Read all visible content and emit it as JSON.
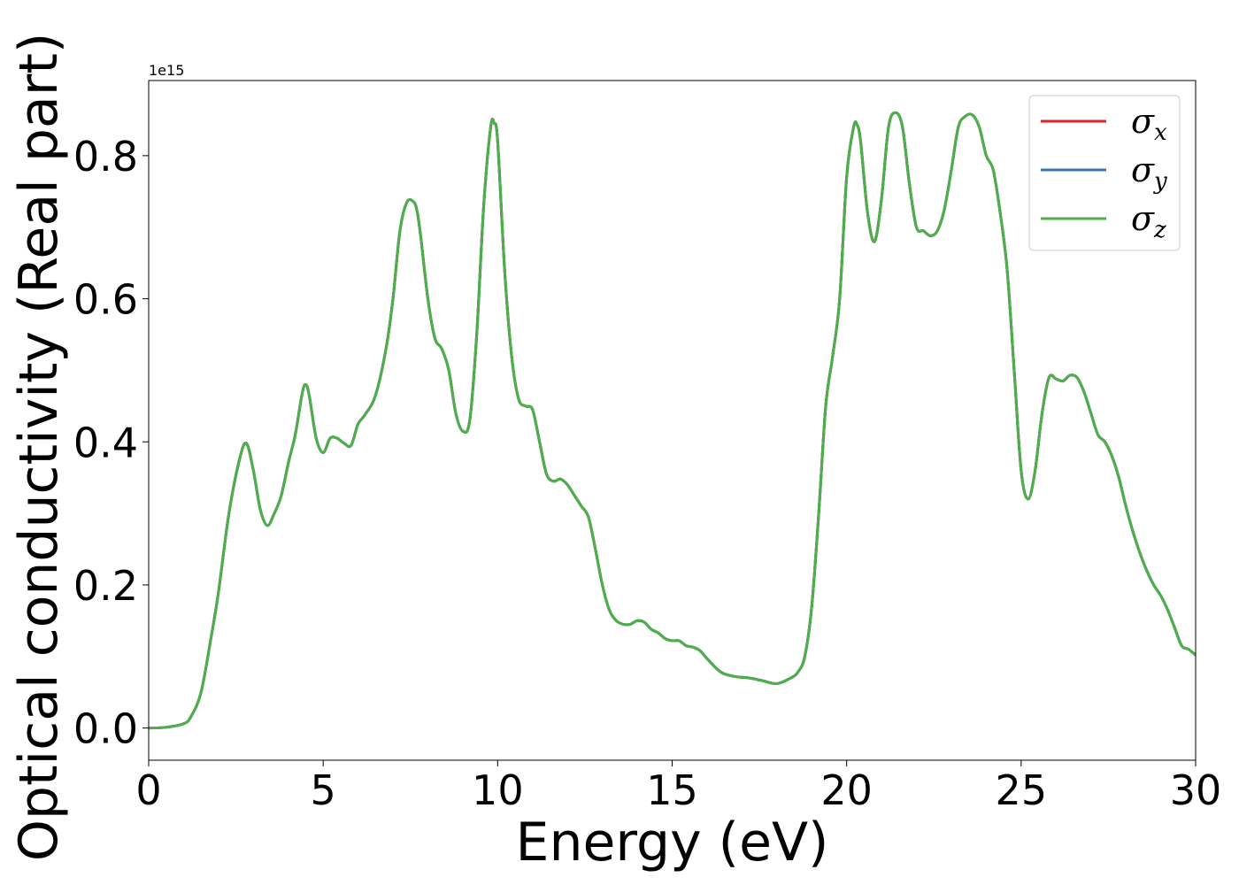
{
  "chart_data": {
    "type": "line",
    "title": "",
    "xlabel": "Energy (eV)",
    "ylabel": "Optical conductivity (Real part)",
    "y_offset_label": "1e15",
    "xlim": [
      0,
      30
    ],
    "ylim": [
      -0.045,
      0.905
    ],
    "x_ticks": [
      0,
      5,
      10,
      15,
      20,
      25,
      30
    ],
    "x_tick_labels": [
      "0",
      "5",
      "10",
      "15",
      "20",
      "25",
      "30"
    ],
    "y_ticks": [
      0.0,
      0.2,
      0.4,
      0.6,
      0.8
    ],
    "y_tick_labels": [
      "0.0",
      "0.2",
      "0.4",
      "0.6",
      "0.8"
    ],
    "grid": false,
    "legend_position": "top-right",
    "x": [
      0,
      0.5,
      1.0,
      1.2,
      1.5,
      1.8,
      2.0,
      2.3,
      2.6,
      2.8,
      3.0,
      3.2,
      3.4,
      3.6,
      3.8,
      4.0,
      4.2,
      4.4,
      4.5,
      4.6,
      4.8,
      5.0,
      5.2,
      5.4,
      5.6,
      5.8,
      6.0,
      6.2,
      6.5,
      6.8,
      7.0,
      7.2,
      7.4,
      7.6,
      7.7,
      7.8,
      8.0,
      8.2,
      8.4,
      8.6,
      8.8,
      9.0,
      9.2,
      9.4,
      9.6,
      9.8,
      9.9,
      10.0,
      10.2,
      10.4,
      10.6,
      10.8,
      11.0,
      11.2,
      11.4,
      11.6,
      11.8,
      12.0,
      12.2,
      12.4,
      12.6,
      12.8,
      13.0,
      13.2,
      13.4,
      13.6,
      13.8,
      14.0,
      14.2,
      14.4,
      14.6,
      14.8,
      15.0,
      15.2,
      15.4,
      15.6,
      15.8,
      16.0,
      16.4,
      16.8,
      17.2,
      17.6,
      18.0,
      18.4,
      18.6,
      18.8,
      19.0,
      19.2,
      19.4,
      19.6,
      19.8,
      20.0,
      20.2,
      20.3,
      20.4,
      20.6,
      20.8,
      21.0,
      21.2,
      21.4,
      21.6,
      21.8,
      22.0,
      22.2,
      22.4,
      22.6,
      22.8,
      23.0,
      23.2,
      23.4,
      23.6,
      23.8,
      24.0,
      24.2,
      24.4,
      24.6,
      24.8,
      25.0,
      25.2,
      25.4,
      25.6,
      25.8,
      26.0,
      26.2,
      26.4,
      26.6,
      26.8,
      27.0,
      27.2,
      27.4,
      27.6,
      27.8,
      28.0,
      28.2,
      28.4,
      28.6,
      28.8,
      29.0,
      29.2,
      29.4,
      29.6,
      29.8,
      30.0
    ],
    "series": [
      {
        "name": "σx",
        "color": "#d62728",
        "values": [
          0.0,
          0.001,
          0.006,
          0.015,
          0.05,
          0.13,
          0.19,
          0.3,
          0.375,
          0.398,
          0.36,
          0.305,
          0.283,
          0.3,
          0.325,
          0.37,
          0.41,
          0.468,
          0.48,
          0.465,
          0.405,
          0.385,
          0.405,
          0.405,
          0.398,
          0.395,
          0.425,
          0.438,
          0.465,
          0.53,
          0.6,
          0.695,
          0.735,
          0.735,
          0.72,
          0.685,
          0.6,
          0.545,
          0.53,
          0.5,
          0.44,
          0.415,
          0.43,
          0.55,
          0.73,
          0.84,
          0.845,
          0.82,
          0.64,
          0.52,
          0.46,
          0.45,
          0.445,
          0.4,
          0.355,
          0.345,
          0.348,
          0.34,
          0.325,
          0.31,
          0.295,
          0.25,
          0.2,
          0.165,
          0.15,
          0.145,
          0.145,
          0.15,
          0.148,
          0.138,
          0.133,
          0.125,
          0.122,
          0.122,
          0.115,
          0.113,
          0.108,
          0.097,
          0.078,
          0.072,
          0.07,
          0.066,
          0.062,
          0.07,
          0.078,
          0.1,
          0.17,
          0.3,
          0.45,
          0.52,
          0.6,
          0.77,
          0.84,
          0.843,
          0.82,
          0.72,
          0.68,
          0.74,
          0.84,
          0.86,
          0.84,
          0.76,
          0.7,
          0.695,
          0.688,
          0.695,
          0.725,
          0.78,
          0.84,
          0.855,
          0.857,
          0.84,
          0.8,
          0.78,
          0.72,
          0.64,
          0.5,
          0.36,
          0.32,
          0.36,
          0.44,
          0.49,
          0.488,
          0.485,
          0.493,
          0.49,
          0.47,
          0.44,
          0.41,
          0.4,
          0.38,
          0.35,
          0.31,
          0.275,
          0.245,
          0.22,
          0.2,
          0.185,
          0.165,
          0.14,
          0.115,
          0.11,
          0.102
        ]
      },
      {
        "name": "σy",
        "color": "#3b75af",
        "values": [
          0.0,
          0.001,
          0.006,
          0.015,
          0.05,
          0.13,
          0.19,
          0.3,
          0.375,
          0.398,
          0.36,
          0.305,
          0.283,
          0.3,
          0.325,
          0.37,
          0.41,
          0.468,
          0.48,
          0.465,
          0.405,
          0.385,
          0.405,
          0.405,
          0.398,
          0.395,
          0.425,
          0.438,
          0.465,
          0.53,
          0.6,
          0.695,
          0.735,
          0.735,
          0.72,
          0.685,
          0.6,
          0.545,
          0.53,
          0.5,
          0.44,
          0.415,
          0.43,
          0.55,
          0.73,
          0.84,
          0.845,
          0.82,
          0.64,
          0.52,
          0.46,
          0.45,
          0.445,
          0.4,
          0.355,
          0.345,
          0.348,
          0.34,
          0.325,
          0.31,
          0.295,
          0.25,
          0.2,
          0.165,
          0.15,
          0.145,
          0.145,
          0.15,
          0.148,
          0.138,
          0.133,
          0.125,
          0.122,
          0.122,
          0.115,
          0.113,
          0.108,
          0.097,
          0.078,
          0.072,
          0.07,
          0.066,
          0.062,
          0.07,
          0.078,
          0.1,
          0.17,
          0.3,
          0.45,
          0.52,
          0.6,
          0.77,
          0.84,
          0.843,
          0.82,
          0.72,
          0.68,
          0.74,
          0.84,
          0.86,
          0.84,
          0.76,
          0.7,
          0.695,
          0.688,
          0.695,
          0.725,
          0.78,
          0.84,
          0.855,
          0.857,
          0.84,
          0.8,
          0.78,
          0.72,
          0.64,
          0.5,
          0.36,
          0.32,
          0.36,
          0.44,
          0.49,
          0.488,
          0.485,
          0.493,
          0.49,
          0.47,
          0.44,
          0.41,
          0.4,
          0.38,
          0.35,
          0.31,
          0.275,
          0.245,
          0.22,
          0.2,
          0.185,
          0.165,
          0.14,
          0.115,
          0.11,
          0.102
        ]
      },
      {
        "name": "σz",
        "color": "#4daf4a",
        "values": [
          0.0,
          0.001,
          0.006,
          0.015,
          0.05,
          0.13,
          0.19,
          0.3,
          0.375,
          0.398,
          0.36,
          0.305,
          0.283,
          0.3,
          0.325,
          0.37,
          0.41,
          0.468,
          0.48,
          0.465,
          0.405,
          0.385,
          0.405,
          0.405,
          0.398,
          0.395,
          0.425,
          0.438,
          0.465,
          0.53,
          0.6,
          0.695,
          0.735,
          0.735,
          0.72,
          0.685,
          0.6,
          0.545,
          0.53,
          0.5,
          0.44,
          0.415,
          0.43,
          0.55,
          0.73,
          0.84,
          0.845,
          0.82,
          0.64,
          0.52,
          0.46,
          0.45,
          0.445,
          0.4,
          0.355,
          0.345,
          0.348,
          0.34,
          0.325,
          0.31,
          0.295,
          0.25,
          0.2,
          0.165,
          0.15,
          0.145,
          0.145,
          0.15,
          0.148,
          0.138,
          0.133,
          0.125,
          0.122,
          0.122,
          0.115,
          0.113,
          0.108,
          0.097,
          0.078,
          0.072,
          0.07,
          0.066,
          0.062,
          0.07,
          0.078,
          0.1,
          0.17,
          0.3,
          0.45,
          0.52,
          0.6,
          0.77,
          0.84,
          0.843,
          0.82,
          0.72,
          0.68,
          0.74,
          0.84,
          0.86,
          0.84,
          0.76,
          0.7,
          0.695,
          0.688,
          0.695,
          0.725,
          0.78,
          0.84,
          0.855,
          0.857,
          0.84,
          0.8,
          0.78,
          0.72,
          0.64,
          0.5,
          0.36,
          0.32,
          0.36,
          0.44,
          0.49,
          0.488,
          0.485,
          0.493,
          0.49,
          0.47,
          0.44,
          0.41,
          0.4,
          0.38,
          0.35,
          0.31,
          0.275,
          0.245,
          0.22,
          0.2,
          0.185,
          0.165,
          0.14,
          0.115,
          0.11,
          0.102
        ]
      }
    ],
    "legend": [
      {
        "symbol": "σ",
        "sub": "x",
        "color": "#d62728"
      },
      {
        "symbol": "σ",
        "sub": "y",
        "color": "#3b75af"
      },
      {
        "symbol": "σ",
        "sub": "z",
        "color": "#4daf4a"
      }
    ]
  }
}
